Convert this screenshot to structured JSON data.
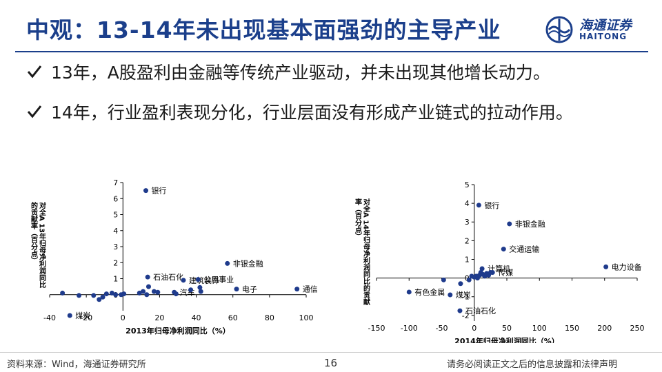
{
  "header": {
    "title": "中观：13-14年未出现基本面强劲的主导产业",
    "logo_cn": "海通证券",
    "logo_en": "HAITONG"
  },
  "bullets": [
    "13年，A股盈利由金融等传统产业驱动，并未出现其他增长动力。",
    "14年，行业盈利表现分化，行业层面没有形成产业链式的拉动作用。"
  ],
  "footer": {
    "source": "资料来源：Wind，海通证券研究所",
    "page": "16",
    "disclaimer": "请务必阅读正文之后的信息披露和法律声明"
  },
  "colors": {
    "accent": "#1b3f8b",
    "point": "#1f3b8c"
  },
  "chart_data": [
    {
      "type": "scatter",
      "title": "",
      "xlabel": "2013年归母净利润同比（%）",
      "ylabel": "对全A 13年归母净利润同比的贡献率（百分点）",
      "xlim": [
        -40,
        100
      ],
      "ylim": [
        -1,
        7
      ],
      "xticks": [
        -40,
        -20,
        0,
        20,
        40,
        60,
        80,
        100
      ],
      "yticks": [
        0,
        1,
        2,
        3,
        4,
        5,
        6,
        7
      ],
      "grid": false,
      "points": [
        {
          "x": 12.5,
          "y": 6.5,
          "label": "银行"
        },
        {
          "x": 57,
          "y": 1.95,
          "label": "非银金融"
        },
        {
          "x": 13.5,
          "y": 1.1,
          "label": "石油石化"
        },
        {
          "x": 33,
          "y": 0.9,
          "label": "建筑装饰"
        },
        {
          "x": 28,
          "y": 0.15,
          "label": "汽车"
        },
        {
          "x": 41,
          "y": 0.95,
          "label": "公用事业"
        },
        {
          "x": 62,
          "y": 0.35,
          "label": "电子"
        },
        {
          "x": 95,
          "y": 0.35,
          "label": "通信"
        },
        {
          "x": -29,
          "y": -1.3,
          "label": "煤炭"
        },
        {
          "x": -33,
          "y": 0.1,
          "label": ""
        },
        {
          "x": -24,
          "y": -0.05,
          "label": ""
        },
        {
          "x": -16,
          "y": -0.05,
          "label": ""
        },
        {
          "x": -13,
          "y": -0.3,
          "label": ""
        },
        {
          "x": -11,
          "y": -0.15,
          "label": ""
        },
        {
          "x": -9,
          "y": 0.05,
          "label": ""
        },
        {
          "x": -6,
          "y": 0.1,
          "label": ""
        },
        {
          "x": -4,
          "y": 0.0,
          "label": ""
        },
        {
          "x": -1,
          "y": 0.0,
          "label": ""
        },
        {
          "x": 0.5,
          "y": 0.05,
          "label": ""
        },
        {
          "x": 9,
          "y": 0.1,
          "label": ""
        },
        {
          "x": 11,
          "y": 0.2,
          "label": ""
        },
        {
          "x": 13,
          "y": 0.0,
          "label": ""
        },
        {
          "x": 14,
          "y": 0.5,
          "label": ""
        },
        {
          "x": 17,
          "y": 0.2,
          "label": ""
        },
        {
          "x": 19,
          "y": 0.15,
          "label": ""
        },
        {
          "x": 29,
          "y": 0.05,
          "label": ""
        },
        {
          "x": 37,
          "y": 0.3,
          "label": ""
        },
        {
          "x": 42,
          "y": 0.45,
          "label": ""
        },
        {
          "x": 42.5,
          "y": 0.2,
          "label": ""
        }
      ]
    },
    {
      "type": "scatter",
      "title": "",
      "xlabel": "2014年归母净利润同比（%）",
      "ylabel": "对全A 14年归母净利润同比的贡献率（百分点）",
      "xlim": [
        -150,
        250
      ],
      "ylim": [
        -2.3,
        5
      ],
      "xticks": [
        -150,
        -100,
        -50,
        0,
        50,
        100,
        150,
        200,
        250
      ],
      "yticks": [
        -2,
        -1,
        0,
        1,
        2,
        3,
        4,
        5
      ],
      "grid": false,
      "points": [
        {
          "x": 7,
          "y": 3.9,
          "label": "银行"
        },
        {
          "x": 54,
          "y": 2.9,
          "label": "非银金融"
        },
        {
          "x": 45,
          "y": 1.55,
          "label": "交通运输"
        },
        {
          "x": 202,
          "y": 0.6,
          "label": "电力设备"
        },
        {
          "x": 12,
          "y": 0.5,
          "label": "计算机"
        },
        {
          "x": 28,
          "y": 0.3,
          "label": "传媒"
        },
        {
          "x": -100,
          "y": -0.75,
          "label": "有色金属"
        },
        {
          "x": -37,
          "y": -0.9,
          "label": "煤炭"
        },
        {
          "x": -22,
          "y": -1.75,
          "label": "石油石化"
        },
        {
          "x": -47,
          "y": -0.1,
          "label": ""
        },
        {
          "x": -21,
          "y": -0.3,
          "label": ""
        },
        {
          "x": -8,
          "y": -0.1,
          "label": ""
        },
        {
          "x": -4,
          "y": 0.1,
          "label": ""
        },
        {
          "x": 0,
          "y": 0.05,
          "label": ""
        },
        {
          "x": 3,
          "y": 0.1,
          "label": ""
        },
        {
          "x": 5,
          "y": 0.0,
          "label": ""
        },
        {
          "x": 8,
          "y": 0.15,
          "label": ""
        },
        {
          "x": 10,
          "y": 0.3,
          "label": ""
        },
        {
          "x": 13,
          "y": 0.2,
          "label": ""
        },
        {
          "x": 16,
          "y": 0.1,
          "label": ""
        },
        {
          "x": 19,
          "y": 0.25,
          "label": ""
        },
        {
          "x": 22,
          "y": 0.15,
          "label": ""
        },
        {
          "x": 25,
          "y": 0.3,
          "label": ""
        }
      ]
    }
  ]
}
